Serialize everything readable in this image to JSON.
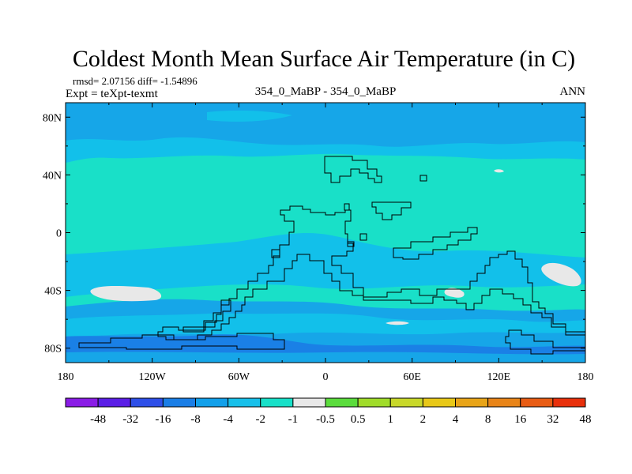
{
  "title": "Coldest Month Mean Surface Air Temperature (in C)",
  "stats_line": "rmsd= 2.07156 diff= -1.54896",
  "expt_line": "Expt = teXpt-texmt",
  "center_label": "354_0_MaBP - 354_0_MaBP",
  "period_label": "ANN",
  "lat_labels": [
    "80N",
    "40N",
    "0",
    "40S",
    "80S"
  ],
  "lat_values": [
    80,
    40,
    0,
    -40,
    -80
  ],
  "lon_labels": [
    "180",
    "120W",
    "60W",
    "0",
    "60E",
    "120E",
    "180"
  ],
  "lon_values": [
    -180,
    -120,
    -60,
    0,
    60,
    120,
    180
  ],
  "colorbar": {
    "colors": [
      "#8a1ce6",
      "#5a1ee6",
      "#2e4fe8",
      "#1a7ee6",
      "#12a0ea",
      "#18c0ea",
      "#18e0c8",
      "#e8e8e8",
      "#5adc3c",
      "#a0dc2a",
      "#c8d82a",
      "#e8c818",
      "#e8a418",
      "#e88418",
      "#e85c14",
      "#e8300c"
    ],
    "labels": [
      "-48",
      "-32",
      "-16",
      "-8",
      "-4",
      "-2",
      "-1",
      "-0.5",
      "0.5",
      "1",
      "2",
      "4",
      "8",
      "16",
      "32",
      "48"
    ]
  },
  "field_colors": {
    "background": "#19e0c8",
    "light_blue": "#12c0ea",
    "mid_blue": "#16a6e8",
    "deep_blue": "#1a80e6",
    "grey": "#e8e8e8"
  }
}
